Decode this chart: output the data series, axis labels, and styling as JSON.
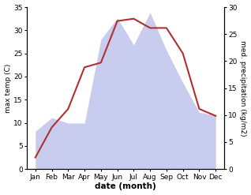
{
  "months": [
    "Jan",
    "Feb",
    "Mar",
    "Apr",
    "May",
    "Jun",
    "Jul",
    "Aug",
    "Sep",
    "Oct",
    "Nov",
    "Dec"
  ],
  "month_x": [
    1,
    2,
    3,
    4,
    5,
    6,
    7,
    8,
    9,
    10,
    11,
    12
  ],
  "temperature": [
    2.5,
    9.0,
    13.0,
    22.0,
    23.0,
    32.0,
    32.5,
    30.5,
    30.5,
    25.0,
    13.0,
    11.5
  ],
  "precipitation": [
    7.0,
    9.5,
    8.5,
    8.5,
    24.0,
    28.0,
    23.0,
    29.0,
    22.0,
    16.0,
    10.5,
    10.0
  ],
  "temp_color": "#b03030",
  "precip_color_fill": "#c8ccee",
  "temp_ylim": [
    0,
    35
  ],
  "precip_ylim": [
    0,
    30
  ],
  "temp_yticks": [
    0,
    5,
    10,
    15,
    20,
    25,
    30,
    35
  ],
  "precip_yticks": [
    0,
    5,
    10,
    15,
    20,
    25,
    30
  ],
  "ylabel_left": "max temp (C)",
  "ylabel_right": "med. precipitation (kg/m2)",
  "xlabel": "date (month)",
  "figsize": [
    3.18,
    2.47
  ],
  "dpi": 100
}
